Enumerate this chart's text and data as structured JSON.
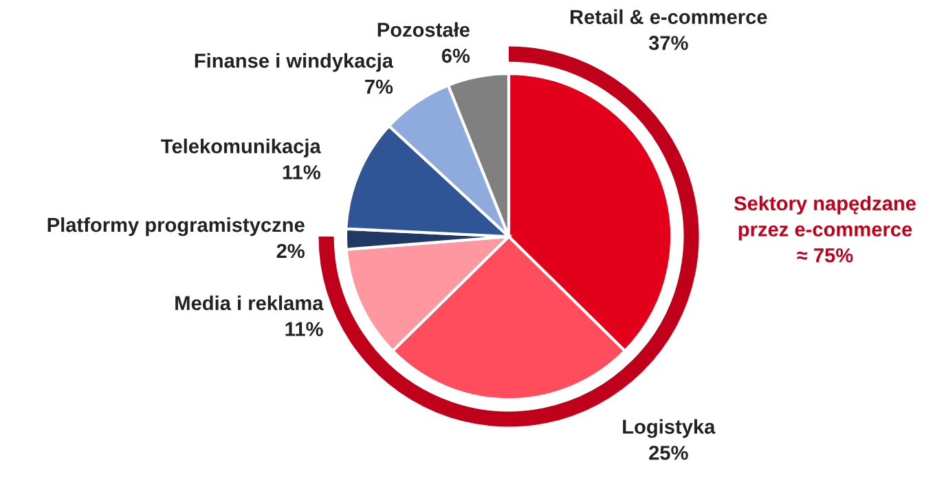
{
  "chart_data": {
    "type": "pie",
    "categories": [
      "Retail & e-commerce",
      "Logistyka",
      "Media i reklama",
      "Platformy programistyczne",
      "Telekomunikacja",
      "Finanse i windykacja",
      "Pozostałe"
    ],
    "values": [
      37,
      25,
      11,
      2,
      11,
      7,
      6
    ],
    "value_labels": [
      "37%",
      "25%",
      "11%",
      "2%",
      "11%",
      "7%",
      "6%"
    ],
    "colors": [
      "#e2001a",
      "#ff4d5e",
      "#ff97a1",
      "#1f3864",
      "#2f5597",
      "#8faadc",
      "#808080"
    ],
    "annotations": [
      "Sektory napędzane\nprzez e-commerce\n≈ 75%"
    ],
    "legend": false
  }
}
